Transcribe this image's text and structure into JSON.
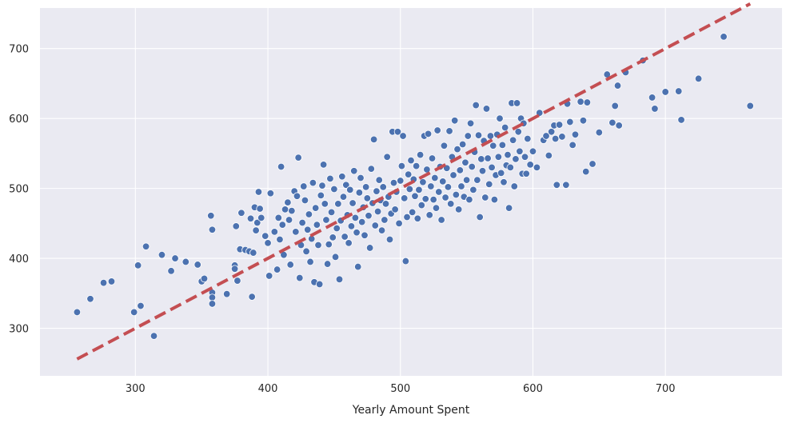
{
  "chart_data": {
    "type": "scatter",
    "title": "",
    "xlabel": "Yearly Amount Spent",
    "ylabel": "",
    "xlim": [
      228,
      788
    ],
    "ylim": [
      232,
      758
    ],
    "xticks": [
      300,
      400,
      500,
      600,
      700
    ],
    "yticks": [
      300,
      400,
      500,
      600,
      700
    ],
    "grid": true,
    "colors": {
      "background": "#eaeaf2",
      "grid": "#ffffff",
      "points": "#4c72b0",
      "point_edge": "#ffffff",
      "fit_line": "#c44e52"
    },
    "series": [
      {
        "kind": "scatter",
        "points": [
          [
            256,
            323
          ],
          [
            266,
            342
          ],
          [
            276,
            365
          ],
          [
            282,
            367
          ],
          [
            299,
            323
          ],
          [
            302,
            390
          ],
          [
            304,
            332
          ],
          [
            308,
            417
          ],
          [
            314,
            289
          ],
          [
            320,
            405
          ],
          [
            327,
            382
          ],
          [
            330,
            400
          ],
          [
            338,
            395
          ],
          [
            347,
            391
          ],
          [
            350,
            367
          ],
          [
            352,
            371
          ],
          [
            357,
            461
          ],
          [
            358,
            441
          ],
          [
            358,
            351
          ],
          [
            358,
            344
          ],
          [
            358,
            335
          ],
          [
            369,
            349
          ],
          [
            375,
            390
          ],
          [
            375,
            385
          ],
          [
            376,
            446
          ],
          [
            377,
            368
          ],
          [
            379,
            413
          ],
          [
            380,
            465
          ],
          [
            383,
            412
          ],
          [
            386,
            410
          ],
          [
            387,
            457
          ],
          [
            388,
            345
          ],
          [
            389,
            408
          ],
          [
            390,
            473
          ],
          [
            391,
            440
          ],
          [
            392,
            451
          ],
          [
            393,
            495
          ],
          [
            394,
            471
          ],
          [
            395,
            458
          ],
          [
            398,
            432
          ],
          [
            400,
            422
          ],
          [
            401,
            375
          ],
          [
            402,
            493
          ],
          [
            405,
            438
          ],
          [
            407,
            384
          ],
          [
            408,
            458
          ],
          [
            409,
            427
          ],
          [
            410,
            531
          ],
          [
            411,
            448
          ],
          [
            412,
            405
          ],
          [
            413,
            470
          ],
          [
            415,
            480
          ],
          [
            416,
            455
          ],
          [
            417,
            391
          ],
          [
            418,
            468
          ],
          [
            420,
            496
          ],
          [
            421,
            438
          ],
          [
            422,
            489
          ],
          [
            423,
            544
          ],
          [
            424,
            372
          ],
          [
            425,
            419
          ],
          [
            426,
            451
          ],
          [
            427,
            503
          ],
          [
            428,
            483
          ],
          [
            429,
            410
          ],
          [
            430,
            441
          ],
          [
            431,
            463
          ],
          [
            432,
            395
          ],
          [
            433,
            428
          ],
          [
            434,
            508
          ],
          [
            435,
            366
          ],
          [
            436,
            472
          ],
          [
            437,
            448
          ],
          [
            438,
            419
          ],
          [
            439,
            363
          ],
          [
            440,
            490
          ],
          [
            441,
            504
          ],
          [
            442,
            534
          ],
          [
            443,
            478
          ],
          [
            444,
            455
          ],
          [
            445,
            392
          ],
          [
            446,
            420
          ],
          [
            447,
            514
          ],
          [
            448,
            466
          ],
          [
            449,
            430
          ],
          [
            450,
            499
          ],
          [
            451,
            402
          ],
          [
            452,
            443
          ],
          [
            453,
            478
          ],
          [
            454,
            370
          ],
          [
            455,
            454
          ],
          [
            456,
            517
          ],
          [
            457,
            488
          ],
          [
            458,
            431
          ],
          [
            459,
            505
          ],
          [
            460,
            462
          ],
          [
            461,
            422
          ],
          [
            462,
            498
          ],
          [
            463,
            446
          ],
          [
            464,
            479
          ],
          [
            465,
            525
          ],
          [
            466,
            458
          ],
          [
            467,
            437
          ],
          [
            468,
            388
          ],
          [
            469,
            494
          ],
          [
            470,
            515
          ],
          [
            471,
            452
          ],
          [
            472,
            473
          ],
          [
            473,
            433
          ],
          [
            474,
            502
          ],
          [
            475,
            486
          ],
          [
            476,
            461
          ],
          [
            477,
            415
          ],
          [
            478,
            528
          ],
          [
            479,
            479
          ],
          [
            480,
            570
          ],
          [
            481,
            447
          ],
          [
            482,
            496
          ],
          [
            483,
            467
          ],
          [
            484,
            512
          ],
          [
            485,
            483
          ],
          [
            486,
            440
          ],
          [
            487,
            502
          ],
          [
            488,
            455
          ],
          [
            489,
            478
          ],
          [
            490,
            545
          ],
          [
            491,
            488
          ],
          [
            492,
            427
          ],
          [
            493,
            464
          ],
          [
            494,
            581
          ],
          [
            495,
            508
          ],
          [
            496,
            470
          ],
          [
            497,
            495
          ],
          [
            498,
            581
          ],
          [
            499,
            450
          ],
          [
            500,
            511
          ],
          [
            501,
            532
          ],
          [
            502,
            575
          ],
          [
            503,
            486
          ],
          [
            504,
            396
          ],
          [
            505,
            459
          ],
          [
            506,
            520
          ],
          [
            507,
            499
          ],
          [
            508,
            540
          ],
          [
            509,
            466
          ],
          [
            510,
            513
          ],
          [
            511,
            489
          ],
          [
            512,
            532
          ],
          [
            513,
            457
          ],
          [
            514,
            498
          ],
          [
            515,
            548
          ],
          [
            516,
            476
          ],
          [
            517,
            509
          ],
          [
            518,
            575
          ],
          [
            519,
            485
          ],
          [
            520,
            527
          ],
          [
            521,
            578
          ],
          [
            522,
            462
          ],
          [
            523,
            503
          ],
          [
            524,
            543
          ],
          [
            525,
            484
          ],
          [
            526,
            515
          ],
          [
            527,
            472
          ],
          [
            528,
            583
          ],
          [
            529,
            495
          ],
          [
            530,
            531
          ],
          [
            531,
            455
          ],
          [
            532,
            510
          ],
          [
            533,
            561
          ],
          [
            534,
            487
          ],
          [
            535,
            529
          ],
          [
            536,
            502
          ],
          [
            537,
            582
          ],
          [
            538,
            478
          ],
          [
            539,
            545
          ],
          [
            540,
            519
          ],
          [
            541,
            597
          ],
          [
            542,
            491
          ],
          [
            543,
            556
          ],
          [
            544,
            470
          ],
          [
            545,
            526
          ],
          [
            546,
            503
          ],
          [
            547,
            563
          ],
          [
            548,
            488
          ],
          [
            549,
            537
          ],
          [
            550,
            512
          ],
          [
            551,
            575
          ],
          [
            552,
            484
          ],
          [
            553,
            593
          ],
          [
            554,
            531
          ],
          [
            555,
            498
          ],
          [
            556,
            552
          ],
          [
            557,
            619
          ],
          [
            558,
            512
          ],
          [
            559,
            576
          ],
          [
            560,
            459
          ],
          [
            561,
            542
          ],
          [
            562,
            525
          ],
          [
            563,
            568
          ],
          [
            564,
            487
          ],
          [
            565,
            614
          ],
          [
            566,
            543
          ],
          [
            567,
            506
          ],
          [
            568,
            575
          ],
          [
            569,
            530
          ],
          [
            570,
            561
          ],
          [
            571,
            484
          ],
          [
            572,
            519
          ],
          [
            573,
            577
          ],
          [
            574,
            545
          ],
          [
            575,
            600
          ],
          [
            576,
            522
          ],
          [
            577,
            562
          ],
          [
            578,
            509
          ],
          [
            579,
            587
          ],
          [
            580,
            533
          ],
          [
            581,
            548
          ],
          [
            582,
            472
          ],
          [
            583,
            530
          ],
          [
            584,
            622
          ],
          [
            585,
            569
          ],
          [
            586,
            503
          ],
          [
            587,
            542
          ],
          [
            588,
            622
          ],
          [
            589,
            581
          ],
          [
            590,
            553
          ],
          [
            591,
            600
          ],
          [
            592,
            521
          ],
          [
            593,
            593
          ],
          [
            594,
            545
          ],
          [
            595,
            521
          ],
          [
            596,
            571
          ],
          [
            598,
            534
          ],
          [
            600,
            553
          ],
          [
            603,
            530
          ],
          [
            605,
            608
          ],
          [
            608,
            569
          ],
          [
            610,
            575
          ],
          [
            612,
            547
          ],
          [
            614,
            581
          ],
          [
            616,
            590
          ],
          [
            617,
            571
          ],
          [
            618,
            505
          ],
          [
            620,
            591
          ],
          [
            622,
            574
          ],
          [
            625,
            505
          ],
          [
            626,
            621
          ],
          [
            628,
            595
          ],
          [
            630,
            562
          ],
          [
            632,
            577
          ],
          [
            636,
            624
          ],
          [
            638,
            597
          ],
          [
            640,
            524
          ],
          [
            641,
            623
          ],
          [
            645,
            535
          ],
          [
            650,
            580
          ],
          [
            656,
            663
          ],
          [
            660,
            594
          ],
          [
            662,
            618
          ],
          [
            664,
            647
          ],
          [
            665,
            590
          ],
          [
            670,
            666
          ],
          [
            683,
            683
          ],
          [
            690,
            630
          ],
          [
            692,
            614
          ],
          [
            700,
            638
          ],
          [
            710,
            639
          ],
          [
            712,
            598
          ],
          [
            725,
            657
          ],
          [
            744,
            717
          ],
          [
            764,
            618
          ]
        ]
      },
      {
        "kind": "line",
        "style": "dashed",
        "points": [
          [
            256,
            256
          ],
          [
            764,
            764
          ]
        ]
      }
    ]
  }
}
